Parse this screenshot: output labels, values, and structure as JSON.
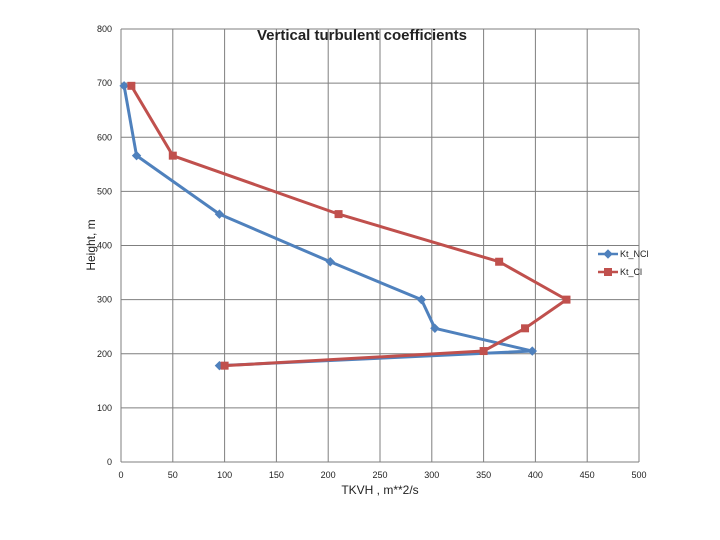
{
  "chart_data": {
    "type": "line",
    "title": "Vertical turbulent coefficients",
    "xlabel": "TKVH , m**2/s",
    "ylabel": "Height, m",
    "xlim": [
      0,
      500
    ],
    "ylim": [
      0,
      800
    ],
    "x_ticks": [
      0,
      50,
      100,
      150,
      200,
      250,
      300,
      350,
      400,
      450,
      500
    ],
    "y_ticks": [
      0,
      100,
      200,
      300,
      400,
      500,
      600,
      700,
      800
    ],
    "grid": true,
    "legend_position": "right",
    "series": [
      {
        "name": "Kt_NCl",
        "color": "#4f81bd",
        "marker": "diamond",
        "points": [
          {
            "x": 3,
            "y": 695
          },
          {
            "x": 15,
            "y": 566
          },
          {
            "x": 95,
            "y": 458
          },
          {
            "x": 202,
            "y": 370
          },
          {
            "x": 290,
            "y": 300
          },
          {
            "x": 303,
            "y": 247
          },
          {
            "x": 397,
            "y": 205
          },
          {
            "x": 95,
            "y": 178
          }
        ]
      },
      {
        "name": "Kt_Cl",
        "color": "#c0504d",
        "marker": "square",
        "points": [
          {
            "x": 10,
            "y": 695
          },
          {
            "x": 50,
            "y": 566
          },
          {
            "x": 210,
            "y": 458
          },
          {
            "x": 365,
            "y": 370
          },
          {
            "x": 430,
            "y": 300
          },
          {
            "x": 390,
            "y": 247
          },
          {
            "x": 350,
            "y": 205
          },
          {
            "x": 100,
            "y": 178
          }
        ]
      }
    ]
  }
}
